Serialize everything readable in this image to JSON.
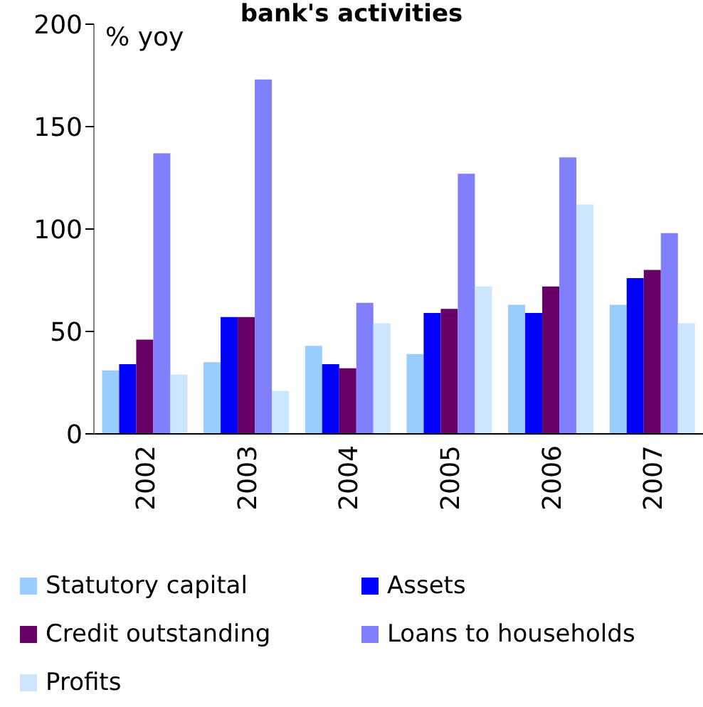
{
  "chart_data": {
    "type": "bar",
    "title": "bank's activities",
    "ylabel": "% yoy",
    "categories": [
      "2002",
      "2003",
      "2004",
      "2005",
      "2006",
      "2007"
    ],
    "series": [
      {
        "name": "Statutory capital",
        "color": "#99ccff",
        "values": [
          31,
          35,
          43,
          39,
          63,
          63
        ]
      },
      {
        "name": "Assets",
        "color": "#0000ff",
        "values": [
          34,
          57,
          34,
          59,
          59,
          76
        ]
      },
      {
        "name": "Credit outstanding",
        "color": "#660066",
        "values": [
          46,
          57,
          32,
          61,
          72,
          80
        ]
      },
      {
        "name": "Loans to households",
        "color": "#8080ff",
        "values": [
          137,
          173,
          64,
          127,
          135,
          98
        ]
      },
      {
        "name": "Profits",
        "color": "#cce6ff",
        "values": [
          29,
          21,
          54,
          72,
          112,
          54
        ]
      }
    ],
    "ylim": [
      0,
      200
    ],
    "yticks": [
      0,
      50,
      100,
      150,
      200
    ],
    "grid": false,
    "legend": "bottom"
  }
}
